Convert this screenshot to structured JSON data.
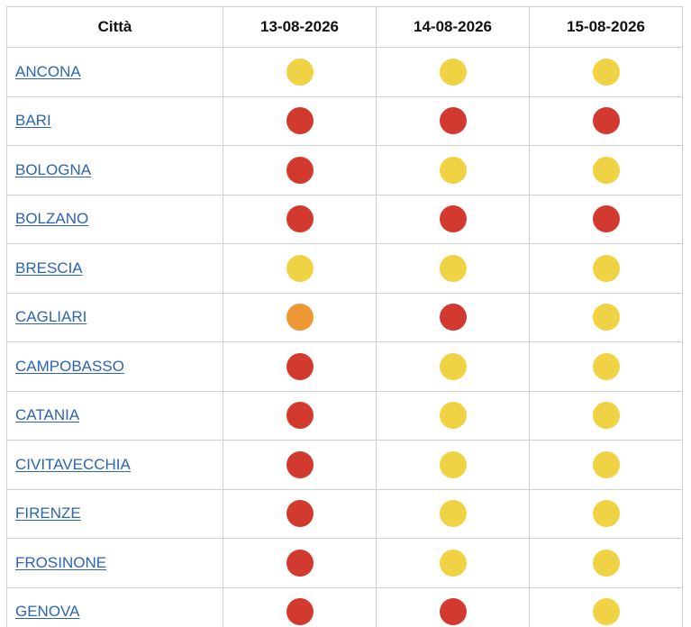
{
  "table": {
    "header": {
      "city": "Città",
      "dates": [
        "13-08-2026",
        "14-08-2026",
        "15-08-2026"
      ]
    },
    "levels": {
      "yellow": "#f0d245",
      "orange": "#ef9733",
      "red": "#d23a30"
    },
    "rows": [
      {
        "city": "ANCONA",
        "levels": [
          "yellow",
          "yellow",
          "yellow"
        ]
      },
      {
        "city": "BARI",
        "levels": [
          "red",
          "red",
          "red"
        ]
      },
      {
        "city": "BOLOGNA",
        "levels": [
          "red",
          "yellow",
          "yellow"
        ]
      },
      {
        "city": "BOLZANO",
        "levels": [
          "red",
          "red",
          "red"
        ]
      },
      {
        "city": "BRESCIA",
        "levels": [
          "yellow",
          "yellow",
          "yellow"
        ]
      },
      {
        "city": "CAGLIARI",
        "levels": [
          "orange",
          "red",
          "yellow"
        ]
      },
      {
        "city": "CAMPOBASSO",
        "levels": [
          "red",
          "yellow",
          "yellow"
        ]
      },
      {
        "city": "CATANIA",
        "levels": [
          "red",
          "yellow",
          "yellow"
        ]
      },
      {
        "city": "CIVITAVECCHIA",
        "levels": [
          "red",
          "yellow",
          "yellow"
        ]
      },
      {
        "city": "FIRENZE",
        "levels": [
          "red",
          "yellow",
          "yellow"
        ]
      },
      {
        "city": "FROSINONE",
        "levels": [
          "red",
          "yellow",
          "yellow"
        ]
      },
      {
        "city": "GENOVA",
        "levels": [
          "red",
          "red",
          "yellow"
        ]
      }
    ]
  }
}
